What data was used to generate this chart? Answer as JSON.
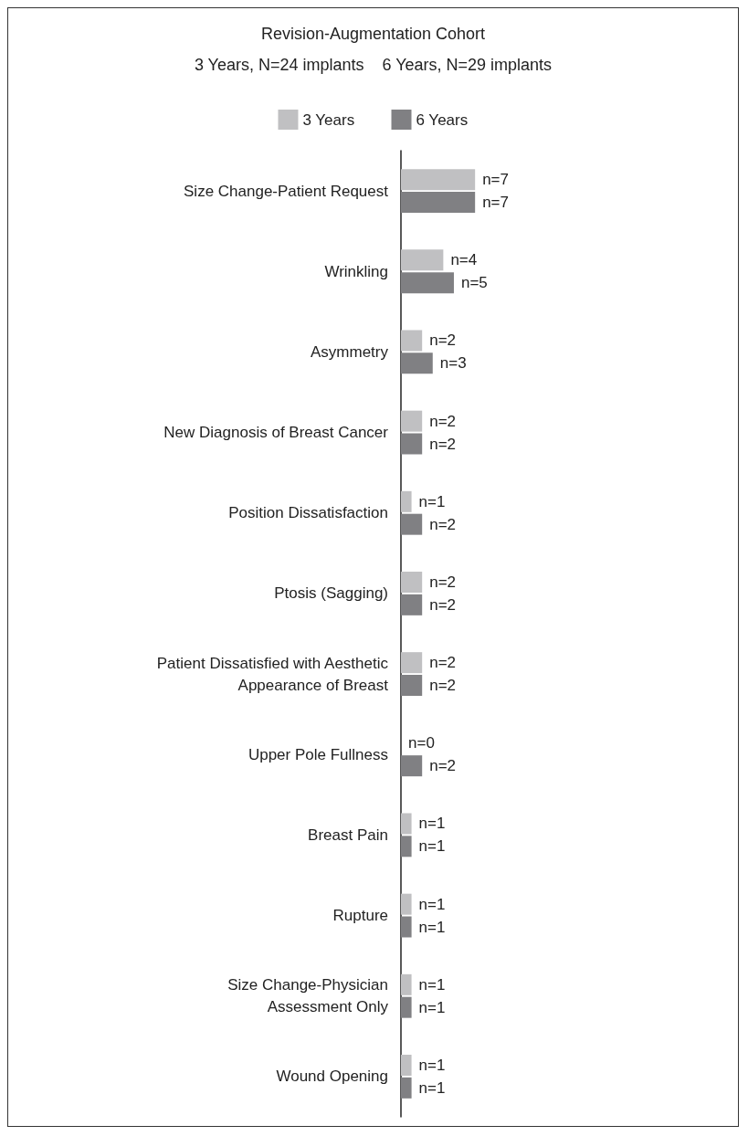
{
  "chart_data": {
    "type": "bar",
    "orientation": "horizontal",
    "title": "Revision-Augmentation Cohort",
    "subtitle": "3 Years, N=24 implants    6 Years, N=29 implants",
    "legend": "top",
    "categories": [
      "Size Change-Patient Request",
      "Wrinkling",
      "Asymmetry",
      "New Diagnosis of Breast Cancer",
      "Position Dissatisfaction",
      "Ptosis (Sagging)",
      "Patient Dissatisfied with Aesthetic\nAppearance of Breast",
      "Upper Pole Fullness",
      "Breast Pain",
      "Rupture",
      "Size Change-Physician\nAssessment Only",
      "Wound Opening"
    ],
    "series": [
      {
        "name": "3 Years",
        "color": "#c0c0c2",
        "values": [
          7,
          4,
          2,
          2,
          1,
          2,
          2,
          0,
          1,
          1,
          1,
          1
        ],
        "value_labels": [
          "n=7",
          "n=4",
          "n=2",
          "n=2",
          "n=1",
          "n=2",
          "n=2",
          "n=0",
          "n=1",
          "n=1",
          "n=1",
          "n=1"
        ]
      },
      {
        "name": "6 Years",
        "color": "#808083",
        "values": [
          7,
          5,
          3,
          2,
          2,
          2,
          2,
          2,
          1,
          1,
          1,
          1
        ],
        "value_labels": [
          "n=7",
          "n=5",
          "n=3",
          "n=2",
          "n=2",
          "n=2",
          "n=2",
          "n=2",
          "n=1",
          "n=1",
          "n=1",
          "n=1"
        ]
      }
    ],
    "grid": false
  }
}
